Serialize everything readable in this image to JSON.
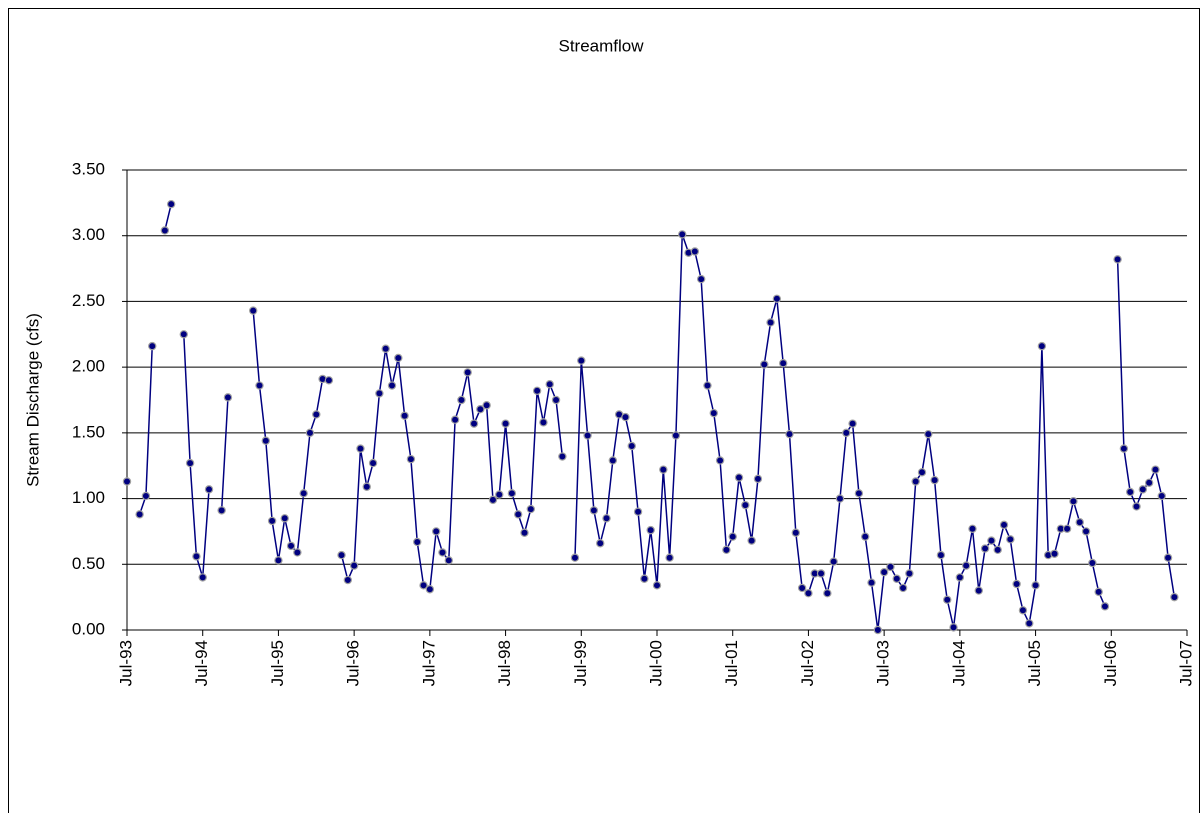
{
  "chart_data": {
    "type": "line",
    "title": "Streamflow",
    "y_label": "Stream Discharge (cfs)",
    "x": [
      "1993-07",
      "1993-08",
      "1993-09",
      "1993-10",
      "1993-11",
      "1993-12",
      "1994-01",
      "1994-02",
      "1994-03",
      "1994-04",
      "1994-05",
      "1994-06",
      "1994-07",
      "1994-08",
      "1994-09",
      "1994-10",
      "1994-11",
      "1994-12",
      "1995-01",
      "1995-02",
      "1995-03",
      "1995-04",
      "1995-05",
      "1995-06",
      "1995-07",
      "1995-08",
      "1995-09",
      "1995-10",
      "1995-11",
      "1995-12",
      "1996-01",
      "1996-02",
      "1996-03",
      "1996-04",
      "1996-05",
      "1996-06",
      "1996-07",
      "1996-08",
      "1996-09",
      "1996-10",
      "1996-11",
      "1996-12",
      "1997-01",
      "1997-02",
      "1997-03",
      "1997-04",
      "1997-05",
      "1997-06",
      "1997-07",
      "1997-08",
      "1997-09",
      "1997-10",
      "1997-11",
      "1997-12",
      "1998-01",
      "1998-02",
      "1998-03",
      "1998-04",
      "1998-05",
      "1998-06",
      "1998-07",
      "1998-08",
      "1998-09",
      "1998-10",
      "1998-11",
      "1998-12",
      "1999-01",
      "1999-02",
      "1999-03",
      "1999-04",
      "1999-05",
      "1999-06",
      "1999-07",
      "1999-08",
      "1999-09",
      "1999-10",
      "1999-11",
      "1999-12",
      "2000-01",
      "2000-02",
      "2000-03",
      "2000-04",
      "2000-05",
      "2000-06",
      "2000-07",
      "2000-08",
      "2000-09",
      "2000-10",
      "2000-11",
      "2000-12",
      "2001-01",
      "2001-02",
      "2001-03",
      "2001-04",
      "2001-05",
      "2001-06",
      "2001-07",
      "2001-08",
      "2001-09",
      "2001-10",
      "2001-11",
      "2001-12",
      "2002-01",
      "2002-02",
      "2002-03",
      "2002-04",
      "2002-05",
      "2002-06",
      "2002-07",
      "2002-08",
      "2002-09",
      "2002-10",
      "2002-11",
      "2002-12",
      "2003-01",
      "2003-02",
      "2003-03",
      "2003-04",
      "2003-05",
      "2003-06",
      "2003-07",
      "2003-08",
      "2003-09",
      "2003-10",
      "2003-11",
      "2003-12",
      "2004-01",
      "2004-02",
      "2004-03",
      "2004-04",
      "2004-05",
      "2004-06",
      "2004-07",
      "2004-08",
      "2004-09",
      "2004-10",
      "2004-11",
      "2004-12",
      "2005-01",
      "2005-02",
      "2005-03",
      "2005-04",
      "2005-05",
      "2005-06",
      "2005-07",
      "2005-08",
      "2005-09",
      "2005-10",
      "2005-11",
      "2005-12",
      "2006-01",
      "2006-02",
      "2006-03",
      "2006-04",
      "2006-05",
      "2006-06",
      "2006-07",
      "2006-08",
      "2006-09",
      "2006-10",
      "2006-11",
      "2006-12",
      "2007-01",
      "2007-02",
      "2007-03",
      "2007-04",
      "2007-05"
    ],
    "series": [
      {
        "color": "#000080",
        "values": [
          1.13,
          null,
          0.88,
          1.02,
          2.16,
          null,
          3.04,
          3.24,
          null,
          2.25,
          1.27,
          0.56,
          0.4,
          1.07,
          null,
          0.91,
          1.77,
          null,
          null,
          null,
          2.43,
          1.86,
          1.44,
          0.83,
          0.53,
          0.85,
          0.64,
          0.59,
          1.04,
          1.5,
          1.64,
          1.91,
          1.9,
          null,
          0.57,
          0.38,
          0.49,
          1.38,
          1.09,
          1.27,
          1.8,
          2.14,
          1.86,
          2.07,
          1.63,
          1.3,
          0.67,
          0.34,
          0.31,
          0.75,
          0.59,
          0.53,
          1.6,
          1.75,
          1.96,
          1.57,
          1.68,
          1.71,
          0.99,
          1.03,
          1.57,
          1.04,
          0.88,
          0.74,
          0.92,
          1.82,
          1.58,
          1.87,
          1.75,
          1.32,
          null,
          0.55,
          2.05,
          1.48,
          0.91,
          0.66,
          0.85,
          1.29,
          1.64,
          1.62,
          1.4,
          0.9,
          0.39,
          0.76,
          0.34,
          1.22,
          0.55,
          1.48,
          3.01,
          2.87,
          2.88,
          2.67,
          1.86,
          1.65,
          1.29,
          0.61,
          0.71,
          1.16,
          0.95,
          0.68,
          1.15,
          2.02,
          2.34,
          2.52,
          2.03,
          1.49,
          0.74,
          0.32,
          0.28,
          0.43,
          0.43,
          0.28,
          0.52,
          1.0,
          1.5,
          1.57,
          1.04,
          0.71,
          0.36,
          0.0,
          0.44,
          0.48,
          0.39,
          0.32,
          0.43,
          1.13,
          1.2,
          1.49,
          1.14,
          0.57,
          0.23,
          0.02,
          0.4,
          0.49,
          0.77,
          0.3,
          0.62,
          0.68,
          0.61,
          0.8,
          0.69,
          0.35,
          0.15,
          0.05,
          0.34,
          2.16,
          0.57,
          0.58,
          0.77,
          0.77,
          0.98,
          0.82,
          0.75,
          0.51,
          0.29,
          0.18,
          null,
          2.82,
          1.38,
          1.05,
          0.94,
          1.07,
          1.12,
          1.22,
          1.02,
          0.55,
          0.25
        ]
      }
    ],
    "xlim": [
      "1993-07",
      "2007-07"
    ],
    "xticks": [
      {
        "value": "1993-07",
        "label": "Jul-93"
      },
      {
        "value": "1994-07",
        "label": "Jul-94"
      },
      {
        "value": "1995-07",
        "label": "Jul-95"
      },
      {
        "value": "1996-07",
        "label": "Jul-96"
      },
      {
        "value": "1997-07",
        "label": "Jul-97"
      },
      {
        "value": "1998-07",
        "label": "Jul-98"
      },
      {
        "value": "1999-07",
        "label": "Jul-99"
      },
      {
        "value": "2000-07",
        "label": "Jul-00"
      },
      {
        "value": "2001-07",
        "label": "Jul-01"
      },
      {
        "value": "2002-07",
        "label": "Jul-02"
      },
      {
        "value": "2003-07",
        "label": "Jul-03"
      },
      {
        "value": "2004-07",
        "label": "Jul-04"
      },
      {
        "value": "2005-07",
        "label": "Jul-05"
      },
      {
        "value": "2006-07",
        "label": "Jul-06"
      },
      {
        "value": "2007-07",
        "label": "Jul-07"
      }
    ],
    "ylim": [
      0,
      3.5
    ],
    "yticks": [
      {
        "value": 0,
        "label": "0.00"
      },
      {
        "value": 0.5,
        "label": "0.50"
      },
      {
        "value": 1,
        "label": "1.00"
      },
      {
        "value": 1.5,
        "label": "1.50"
      },
      {
        "value": 2,
        "label": "2.00"
      },
      {
        "value": 2.5,
        "label": "2.50"
      },
      {
        "value": 3,
        "label": "3.00"
      },
      {
        "value": 3.5,
        "label": "3.50"
      }
    ],
    "grid": true
  }
}
